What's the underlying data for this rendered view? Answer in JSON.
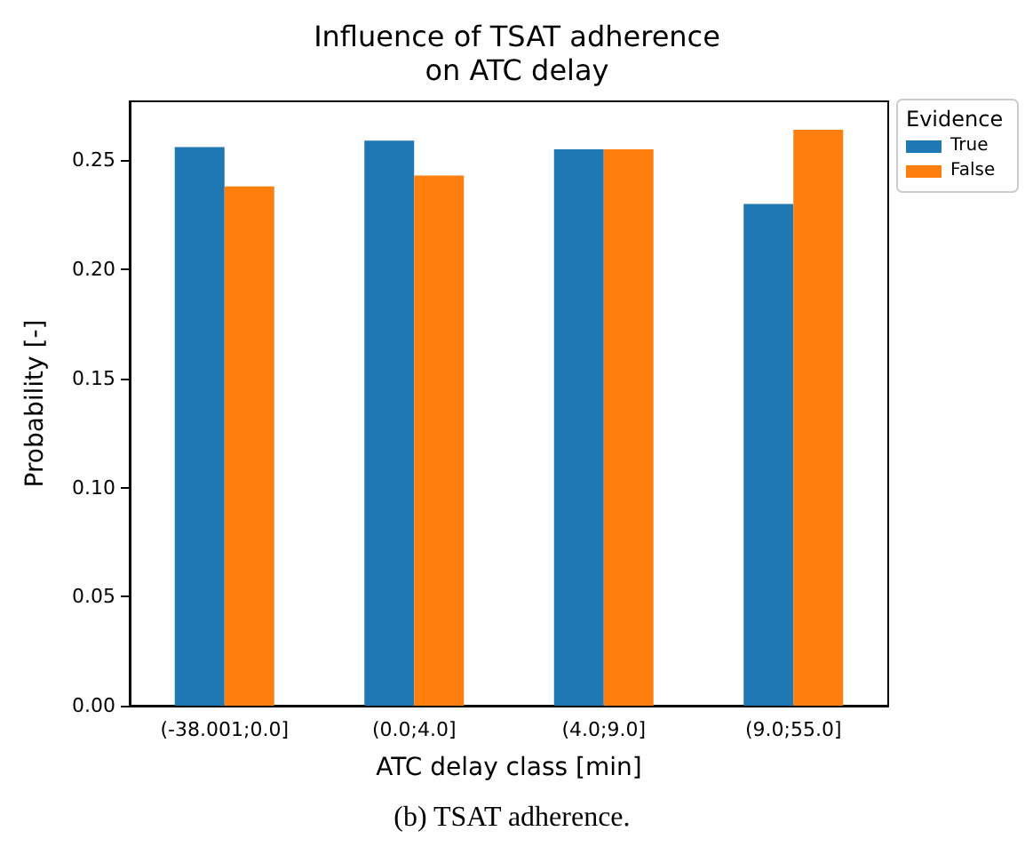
{
  "chart_data": {
    "type": "bar",
    "title": "Influence of TSAT adherence\non ATC delay",
    "xlabel": "ATC delay class [min]",
    "ylabel": "Probability [-]",
    "legend_title": "Evidence",
    "legend": "top right",
    "categories": [
      "(-38.001;0.0]",
      "(0.0;4.0]",
      "(4.0;9.0]",
      "(9.0;55.0]"
    ],
    "series": [
      {
        "name": "True",
        "color": "#1f77b4",
        "values": [
          0.256,
          0.259,
          0.255,
          0.23
        ]
      },
      {
        "name": "False",
        "color": "#ff7f0e",
        "values": [
          0.238,
          0.243,
          0.255,
          0.264
        ]
      }
    ],
    "ylim": [
      0,
      0.277
    ],
    "yticks": [
      {
        "value": 0,
        "label": "0.00"
      },
      0.05,
      {
        "value": 0.1,
        "label": "0.10"
      },
      0.15,
      {
        "value": 0.2,
        "label": "0.20"
      },
      0.25
    ],
    "grid": false,
    "annotations": [
      "(b) TSAT adherence."
    ]
  }
}
